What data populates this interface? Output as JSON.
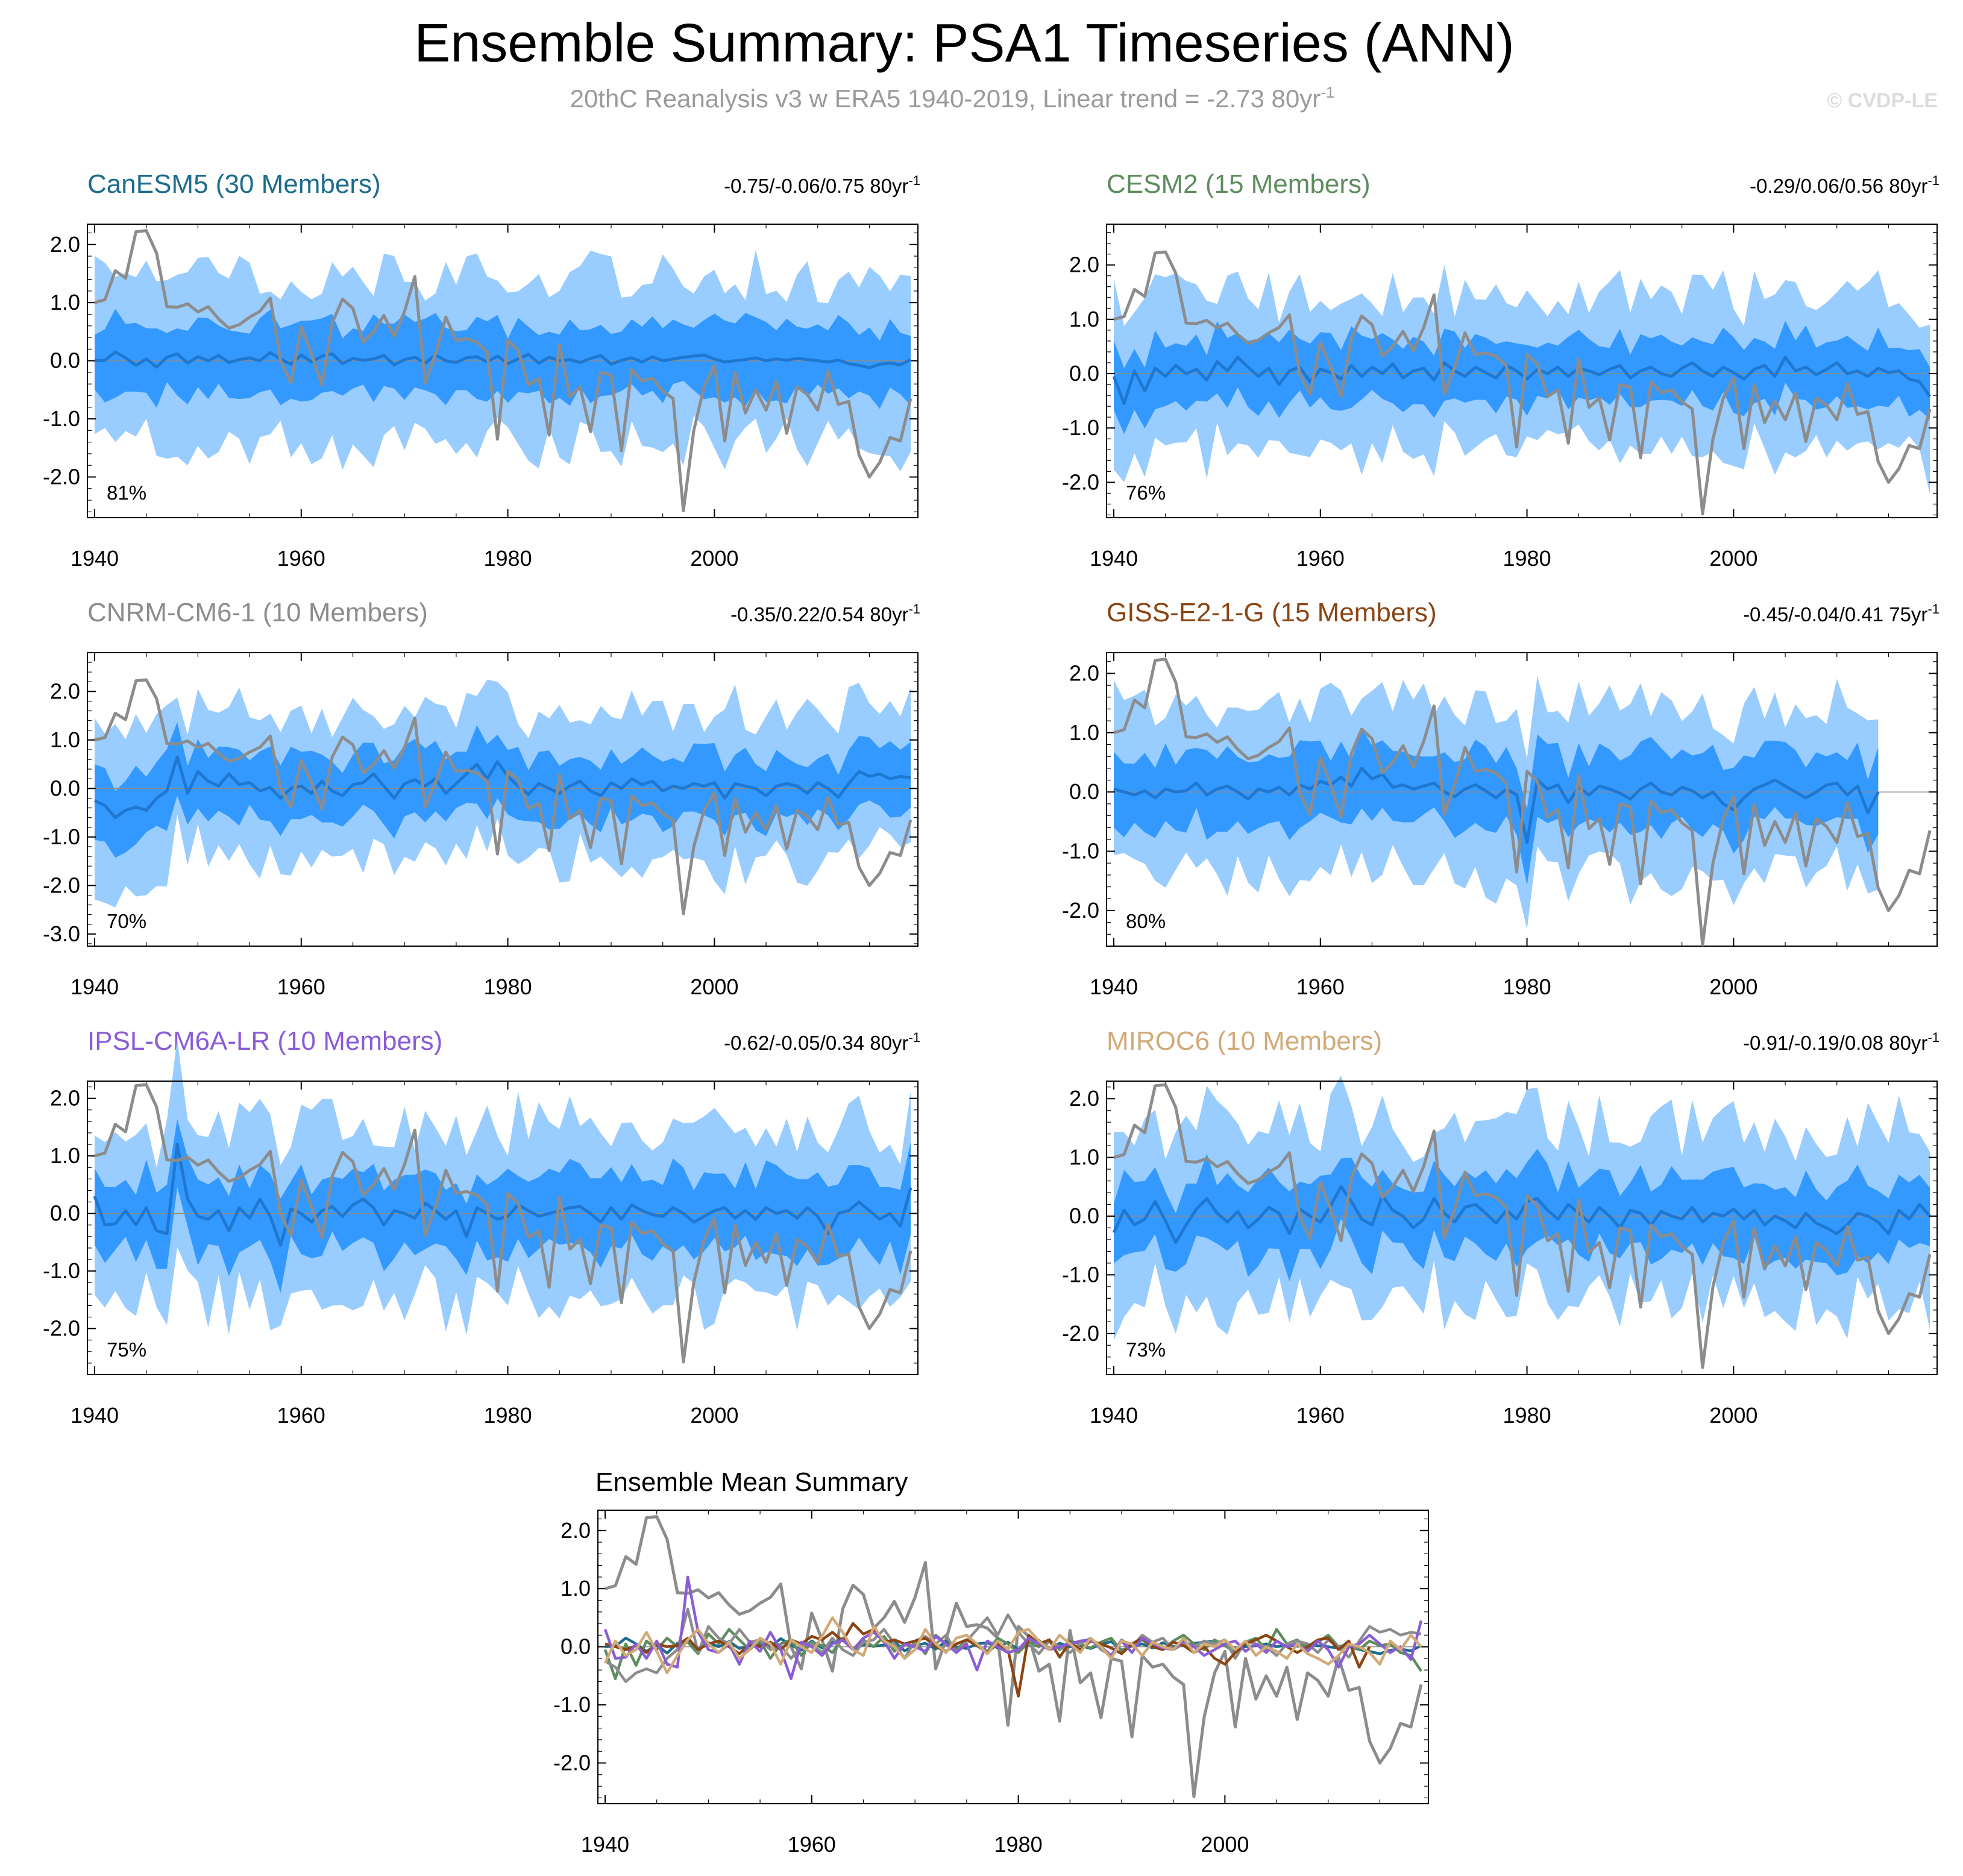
{
  "title": "Ensemble Summary: PSA1 Timeseries (ANN)",
  "subtitle": "20thC Reanalysis v3 w ERA5 1940-2019, Linear trend = -2.73 80yr",
  "subtitle_sup": "-1",
  "copyright": "© CVDP-LE",
  "colors": {
    "band_outer": "#99ccff",
    "band_inner": "#3399ff",
    "ens_mean": "#1e78d2",
    "observed": "#8c8c8c",
    "zero_line": "#8c8c8c"
  },
  "x_ticks": [
    "1940",
    "1960",
    "1980",
    "2000"
  ],
  "panels": [
    {
      "name": "CanESM5 (30 Members)",
      "color": "#1c6c8c",
      "trend": "-0.75/-0.06/0.75 80yr",
      "trend_sup": "-1",
      "pct": "81%",
      "ylim": [
        -2.7,
        2.35
      ],
      "yticks": [
        "2.0",
        "1.0",
        "0.0",
        "-1.0",
        "-2.0"
      ],
      "ytick_values": [
        2,
        1,
        0,
        -1,
        -2
      ],
      "x_end": 2019,
      "outer": 1.38,
      "inner": 0.62,
      "mean": 0.14,
      "seed": 11
    },
    {
      "name": "CESM2 (15 Members)",
      "color": "#5e8c5e",
      "trend": "-0.29/0.06/0.56 80yr",
      "trend_sup": "-1",
      "pct": "76%",
      "ylim": [
        -2.65,
        2.75
      ],
      "yticks": [
        "2.0",
        "1.0",
        "0.0",
        "-1.0",
        "-2.0"
      ],
      "ytick_values": [
        2,
        1,
        0,
        -1,
        -2
      ],
      "x_end": 2019,
      "outer": 1.35,
      "inner": 0.6,
      "mean": 0.18,
      "seed": 23
    },
    {
      "name": "CNRM-CM6-1 (10 Members)",
      "color": "#8c8c8c",
      "trend": "-0.35/0.22/0.54 80yr",
      "trend_sup": "-1",
      "pct": "70%",
      "ylim": [
        -3.25,
        2.8
      ],
      "yticks": [
        "2.0",
        "1.0",
        "0.0",
        "-1.0",
        "-2.0",
        "-3.0"
      ],
      "ytick_values": [
        2,
        1,
        0,
        -1,
        -2,
        -3
      ],
      "x_end": 2019,
      "outer": 1.5,
      "inner": 0.68,
      "mean": 0.25,
      "seed": 37
    },
    {
      "name": "GISS-E2-1-G (15 Members)",
      "color": "#8b4513",
      "trend": "-0.45/-0.04/0.41 75yr",
      "trend_sup": "-1",
      "pct": "80%",
      "ylim": [
        -2.6,
        2.35
      ],
      "yticks": [
        "2.0",
        "1.0",
        "0.0",
        "-1.0",
        "-2.0"
      ],
      "ytick_values": [
        2,
        1,
        0,
        -1,
        -2
      ],
      "x_end": 2014,
      "outer": 1.35,
      "inner": 0.62,
      "mean": 0.2,
      "seed": 41
    },
    {
      "name": "IPSL-CM6A-LR (10 Members)",
      "color": "#8a5cd6",
      "trend": "-0.62/-0.05/0.34 80yr",
      "trend_sup": "-1",
      "pct": "75%",
      "ylim": [
        -2.8,
        2.3
      ],
      "yticks": [
        "2.0",
        "1.0",
        "0.0",
        "-1.0",
        "-2.0"
      ],
      "ytick_values": [
        2,
        1,
        0,
        -1,
        -2
      ],
      "x_end": 2019,
      "outer": 1.45,
      "inner": 0.66,
      "mean": 0.22,
      "seed": 53
    },
    {
      "name": "MIROC6 (10 Members)",
      "color": "#d2aa78",
      "trend": "-0.91/-0.19/0.08 80yr",
      "trend_sup": "-1",
      "pct": "73%",
      "ylim": [
        -2.7,
        2.3
      ],
      "yticks": [
        "2.0",
        "1.0",
        "0.0",
        "-1.0",
        "-2.0"
      ],
      "ytick_values": [
        2,
        1,
        0,
        -1,
        -2
      ],
      "x_end": 2019,
      "outer": 1.45,
      "inner": 0.66,
      "mean": 0.2,
      "seed": 67
    }
  ],
  "summary_panel": {
    "title": "Ensemble Mean Summary",
    "ylim": [
      -2.7,
      2.35
    ],
    "yticks": [
      "2.0",
      "1.0",
      "0.0",
      "-1.0",
      "-2.0"
    ],
    "ytick_values": [
      2,
      1,
      0,
      -1,
      -2
    ]
  },
  "chart_data": {
    "type": "line",
    "title": "Ensemble Summary: PSA1 Timeseries (ANN)",
    "xlabel": "",
    "ylabel": "",
    "x_start": 1940,
    "x_end": 2019,
    "observed": {
      "name": "20thC Reanalysis v3 w ERA5 1940-2019",
      "values": [
        1.0,
        1.05,
        1.55,
        1.42,
        2.22,
        2.24,
        1.85,
        0.93,
        0.92,
        0.98,
        0.84,
        0.93,
        0.72,
        0.56,
        0.62,
        0.75,
        0.85,
        1.08,
        0.0,
        -0.38,
        0.58,
        0.12,
        -0.42,
        0.65,
        1.06,
        0.9,
        0.32,
        0.5,
        0.78,
        0.42,
        0.85,
        1.45,
        -0.38,
        0.12,
        0.75,
        0.35,
        0.38,
        0.32,
        0.15,
        -1.35,
        0.35,
        0.18,
        -0.42,
        -0.3,
        -1.28,
        0.28,
        -0.62,
        -0.45,
        -1.22,
        -0.2,
        -0.25,
        -1.55,
        -0.15,
        -0.35,
        -0.3,
        -0.52,
        -0.65,
        -2.58,
        -1.2,
        -0.45,
        -0.08,
        -1.38,
        -0.2,
        -0.9,
        -0.5,
        -0.85,
        -0.35,
        -1.25,
        -0.45,
        -0.58,
        -0.85,
        -0.18,
        -0.75,
        -0.7,
        -1.62,
        -2.0,
        -1.75,
        -1.32,
        -1.38,
        -0.65
      ]
    },
    "ensemble_means": [
      {
        "name": "CanESM5",
        "color": "#1c6c8c",
        "values": [
          0.0,
          0.01,
          0.15,
          0.05,
          -0.08,
          0.03,
          -0.11,
          0.06,
          0.12,
          -0.04,
          0.07,
          0.0,
          0.09,
          -0.03,
          0.02,
          0.05,
          0.0,
          0.14,
          0.03,
          -0.06,
          0.1,
          -0.02,
          0.08,
          0.12,
          -0.05,
          0.04,
          0.01,
          0.03,
          0.09,
          -0.07,
          0.02,
          0.06,
          -0.04,
          0.1,
          0.0,
          -0.03,
          0.05,
          0.07,
          -0.02,
          0.08,
          -0.05,
          0.03,
          0.11,
          -0.04,
          0.06,
          0.0,
          0.02,
          -0.03,
          0.04,
          0.09,
          -0.06,
          0.01,
          0.05,
          -0.02,
          0.07,
          0.0,
          0.03,
          0.06,
          0.08,
          0.1,
          0.03,
          -0.02,
          0.0,
          0.02,
          0.05,
          0.0,
          0.03,
          0.01,
          0.04,
          0.02,
          0.0,
          -0.02,
          0.01,
          -0.05,
          -0.08,
          -0.12,
          -0.06,
          -0.04,
          -0.07,
          0.02
        ]
      },
      {
        "name": "CESM2",
        "color": "#5e8c5e",
        "values": [
          -0.05,
          -0.55,
          0.05,
          -0.32,
          0.1,
          -0.05,
          0.15,
          0.0,
          0.08,
          -0.12,
          0.22,
          0.05,
          0.3,
          0.12,
          -0.05,
          0.1,
          -0.2,
          0.05,
          0.12,
          -0.15,
          0.08,
          0.02,
          -0.1,
          0.15,
          -0.05,
          0.12,
          0.0,
          0.18,
          -0.08,
          0.05,
          0.1,
          -0.12,
          0.2,
          0.05,
          -0.05,
          0.12,
          0.02,
          -0.08,
          0.15,
          0.05,
          -0.1,
          0.08,
          0.0,
          0.12,
          -0.05,
          0.1,
          0.05,
          -0.02,
          0.08,
          0.15,
          -0.08,
          0.05,
          0.12,
          0.0,
          -0.05,
          0.1,
          0.2,
          0.05,
          -0.05,
          0.12,
          0.02,
          -0.1,
          0.08,
          0.15,
          -0.05,
          0.3,
          0.05,
          0.12,
          -0.02,
          0.08,
          0.2,
          0.0,
          0.05,
          -0.05,
          0.1,
          0.02,
          0.05,
          -0.1,
          -0.15,
          -0.42
        ]
      },
      {
        "name": "CNRM-CM6-1",
        "color": "#8c8c8c",
        "values": [
          -0.25,
          -0.35,
          -0.6,
          -0.45,
          -0.38,
          -0.45,
          -0.2,
          -0.05,
          0.65,
          -0.1,
          0.35,
          0.15,
          0.05,
          0.3,
          0.08,
          0.12,
          -0.05,
          0.02,
          -0.2,
          0.0,
          0.05,
          -0.1,
          0.15,
          -0.05,
          -0.15,
          0.08,
          0.12,
          0.3,
          0.05,
          -0.2,
          0.1,
          0.18,
          0.05,
          0.2,
          -0.1,
          0.1,
          0.3,
          0.5,
          0.2,
          0.55,
          0.25,
          0.05,
          -0.12,
          0.1,
          0.0,
          -0.1,
          0.05,
          0.15,
          -0.05,
          -0.15,
          0.12,
          0.0,
          0.2,
          0.08,
          0.15,
          -0.05,
          0.05,
          0.0,
          0.1,
          0.05,
          0.12,
          -0.2,
          0.1,
          0.05,
          0.0,
          -0.15,
          0.05,
          0.1,
          0.05,
          -0.1,
          0.12,
          0.0,
          -0.18,
          0.1,
          0.35,
          0.25,
          0.3,
          0.2,
          0.25,
          0.22
        ]
      },
      {
        "name": "GISS-E2-1-G",
        "color": "#8b4513",
        "values": [
          0.05,
          0.0,
          -0.05,
          0.02,
          -0.1,
          0.05,
          0.0,
          0.02,
          0.15,
          -0.05,
          0.05,
          0.1,
          0.0,
          -0.12,
          0.05,
          0.0,
          0.08,
          -0.05,
          0.12,
          0.05,
          0.18,
          0.12,
          0.25,
          0.1,
          0.4,
          0.22,
          0.3,
          0.08,
          0.12,
          0.05,
          0.1,
          0.15,
          0.0,
          -0.08,
          0.05,
          0.12,
          0.02,
          -0.1,
          0.05,
          -0.05,
          -0.85,
          0.2,
          0.05,
          0.12,
          -0.18,
          0.08,
          -0.05,
          0.1,
          0.05,
          -0.02,
          -0.12,
          0.05,
          0.15,
          0.0,
          -0.05,
          0.08,
          0.02,
          -0.1,
          0.0,
          -0.2,
          -0.3,
          -0.1,
          0.05,
          0.12,
          0.2,
          0.1,
          0.0,
          -0.1,
          0.0,
          0.12,
          0.15,
          -0.05,
          0.1,
          -0.35,
          0.0
        ]
      },
      {
        "name": "IPSL-CM6A-LR",
        "color": "#8a5cd6",
        "values": [
          0.3,
          -0.2,
          -0.18,
          0.05,
          -0.2,
          0.1,
          -0.3,
          -0.35,
          1.2,
          0.25,
          -0.05,
          -0.1,
          0.05,
          -0.3,
          0.1,
          -0.08,
          0.25,
          -0.05,
          -0.55,
          0.08,
          0.0,
          -0.15,
          0.05,
          0.12,
          -0.05,
          0.15,
          0.25,
          0.1,
          -0.2,
          0.05,
          0.0,
          -0.08,
          0.18,
          0.05,
          -0.1,
          0.05,
          -0.4,
          0.1,
          0.0,
          -0.1,
          -0.05,
          0.15,
          0.05,
          -0.05,
          0.0,
          0.05,
          0.1,
          0.12,
          0.0,
          -0.15,
          0.1,
          -0.1,
          0.15,
          0.05,
          -0.02,
          -0.05,
          0.1,
          0.0,
          -0.15,
          -0.05,
          0.05,
          0.1,
          -0.08,
          0.05,
          -0.1,
          0.1,
          0.0,
          0.05,
          -0.08,
          0.1,
          -0.05,
          -0.35,
          0.0,
          0.05,
          0.2,
          0.05,
          -0.1,
          0.0,
          -0.22,
          0.45
        ]
      },
      {
        "name": "MIROC6",
        "color": "#d2aa78",
        "values": [
          -0.28,
          0.1,
          -0.15,
          -0.05,
          0.25,
          -0.08,
          -0.45,
          -0.15,
          0.12,
          0.3,
          0.05,
          -0.1,
          0.08,
          -0.2,
          -0.05,
          0.15,
          0.05,
          -0.3,
          0.12,
          0.0,
          -0.1,
          0.18,
          0.5,
          0.25,
          -0.05,
          -0.15,
          0.35,
          0.1,
          0.0,
          -0.2,
          -0.05,
          0.3,
          0.05,
          -0.1,
          0.15,
          0.2,
          0.05,
          -0.12,
          0.1,
          -0.05,
          0.25,
          0.3,
          0.1,
          -0.05,
          0.2,
          0.05,
          -0.1,
          0.15,
          0.0,
          -0.2,
          0.1,
          0.05,
          -0.15,
          0.08,
          0.0,
          -0.05,
          0.15,
          -0.1,
          0.05,
          0.0,
          0.12,
          -0.05,
          0.1,
          -0.15,
          0.0,
          -0.08,
          -0.2,
          0.05,
          -0.12,
          -0.2,
          -0.3,
          -0.15,
          0.05,
          0.0,
          -0.1,
          -0.3,
          0.1,
          -0.05,
          0.2,
          0.0
        ]
      }
    ]
  }
}
